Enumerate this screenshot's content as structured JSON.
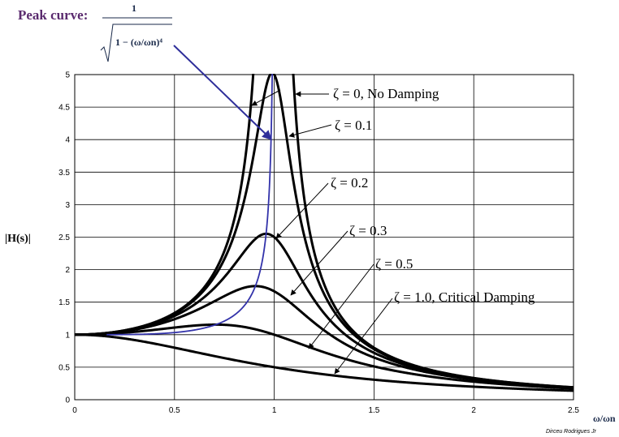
{
  "chart_data": {
    "type": "line",
    "title": "Peak curve:",
    "peak_formula": {
      "numerator": "1",
      "denominator": "1 − (ω/ωn)⁴"
    },
    "ylabel": "|H(s)|",
    "xlabel": "ω/ωn",
    "xlim": [
      0,
      2.5
    ],
    "ylim": [
      0,
      5
    ],
    "x_ticks": [
      "0",
      "0.5",
      "1",
      "1.5",
      "2",
      "2.5"
    ],
    "y_ticks": [
      "0",
      "0.5",
      "1",
      "1.5",
      "2",
      "2.5",
      "3",
      "3.5",
      "4",
      "4.5",
      "5"
    ],
    "grid": true,
    "series": [
      {
        "zeta": 0,
        "label": "ζ = 0,  No Damping",
        "color": "#000000"
      },
      {
        "zeta": 0.1,
        "label": "ζ = 0.1",
        "color": "#000000"
      },
      {
        "zeta": 0.2,
        "label": "ζ = 0.2",
        "color": "#000000"
      },
      {
        "zeta": 0.3,
        "label": "ζ = 0.3",
        "color": "#000000"
      },
      {
        "zeta": 0.5,
        "label": "ζ = 0.5",
        "color": "#000000"
      },
      {
        "zeta": 1.0,
        "label": "ζ = 1.0, Critical Damping",
        "color": "#000000"
      },
      {
        "name": "Peak curve",
        "color": "#3333aa"
      }
    ],
    "credit": "Dirceu Rodrigues Jr"
  }
}
